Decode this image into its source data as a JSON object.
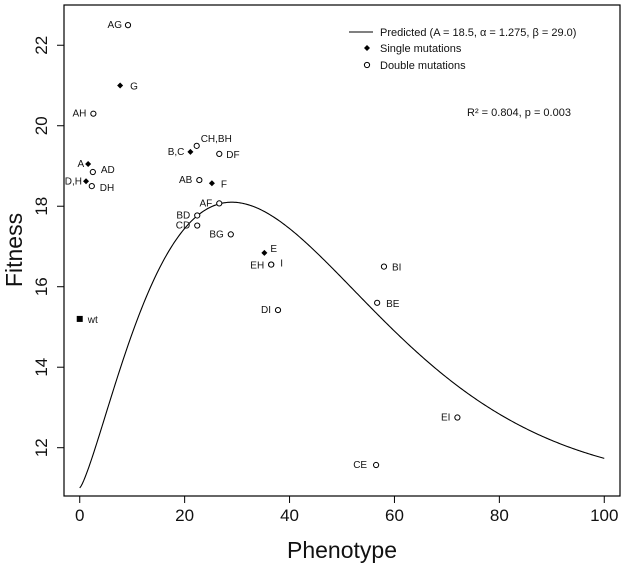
{
  "chart_data": {
    "type": "scatter",
    "xlabel": "Phenotype",
    "ylabel": "Fitness",
    "xlim": [
      -3,
      103
    ],
    "ylim": [
      10.8,
      23.0
    ],
    "xticks": [
      0,
      20,
      40,
      60,
      80,
      100
    ],
    "yticks": [
      12,
      14,
      16,
      18,
      20,
      22
    ],
    "grid": false,
    "legend_position": "top-right",
    "legend": [
      {
        "label": "Predicted (A = 18.5, α = 1.275, β = 29.0)",
        "marker": "line"
      },
      {
        "label": "Single mutations",
        "marker": "diamond"
      },
      {
        "label": "Double mutations",
        "marker": "open-circle"
      }
    ],
    "annotation": "R² = 0.804, p = 0.003",
    "model": {
      "name": "Predicted",
      "A": 18.5,
      "alpha": 1.275,
      "beta": 29.0,
      "baseline": 11.0,
      "x_range": [
        0,
        100
      ]
    },
    "wild_type": {
      "label": "wt",
      "x": 0.0,
      "y": 15.2
    },
    "single_mutations": [
      {
        "label": "G",
        "x": 7.7,
        "y": 21.0
      },
      {
        "label": "A",
        "x": 1.6,
        "y": 19.05
      },
      {
        "label": "D,H",
        "x": 1.2,
        "y": 18.62
      },
      {
        "label": "B,C",
        "x": 21.1,
        "y": 19.35
      },
      {
        "label": "F",
        "x": 25.2,
        "y": 18.57
      },
      {
        "label": "E",
        "x": 35.2,
        "y": 16.84
      }
    ],
    "double_mutations": [
      {
        "label": "AG",
        "x": 9.2,
        "y": 22.5
      },
      {
        "label": "AH",
        "x": 2.6,
        "y": 20.3
      },
      {
        "label": "CH,BH",
        "x": 22.3,
        "y": 19.5
      },
      {
        "label": "DF",
        "x": 26.6,
        "y": 19.3
      },
      {
        "label": "AD",
        "x": 2.5,
        "y": 18.85
      },
      {
        "label": "DH",
        "x": 2.3,
        "y": 18.5
      },
      {
        "label": "AB",
        "x": 22.8,
        "y": 18.65
      },
      {
        "label": "AF",
        "x": 26.6,
        "y": 18.07
      },
      {
        "label": "BD",
        "x": 22.4,
        "y": 17.77
      },
      {
        "label": "CD",
        "x": 22.4,
        "y": 17.52
      },
      {
        "label": "BG",
        "x": 28.8,
        "y": 17.3
      },
      {
        "label": "EH",
        "x": 36.5,
        "y": 16.55
      },
      {
        "label": "I",
        "x": 36.5,
        "y": 16.55
      },
      {
        "label": "DI",
        "x": 37.8,
        "y": 15.42
      },
      {
        "label": "BI",
        "x": 58.0,
        "y": 16.5
      },
      {
        "label": "BE",
        "x": 56.7,
        "y": 15.6
      },
      {
        "label": "EI",
        "x": 72.0,
        "y": 12.75
      },
      {
        "label": "CE",
        "x": 56.5,
        "y": 11.57
      }
    ]
  }
}
